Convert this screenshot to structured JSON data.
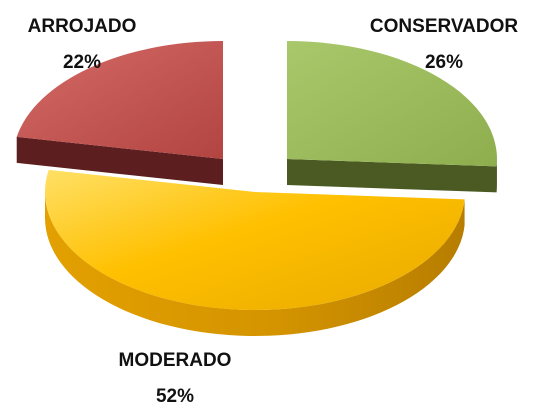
{
  "chart_data": {
    "type": "pie",
    "style": "3d-exploded",
    "title": "",
    "categories": [
      "ARROJADO",
      "CONSERVADOR",
      "MODERADO"
    ],
    "values": [
      22,
      26,
      52
    ],
    "value_labels": [
      "22%",
      "26%",
      "52%"
    ],
    "colors": [
      "#C0504D",
      "#9BBB59",
      "#FFC000"
    ],
    "side_colors": [
      "#5C1E1E",
      "#4A5A22",
      "#C88A00"
    ],
    "legend": "none"
  }
}
